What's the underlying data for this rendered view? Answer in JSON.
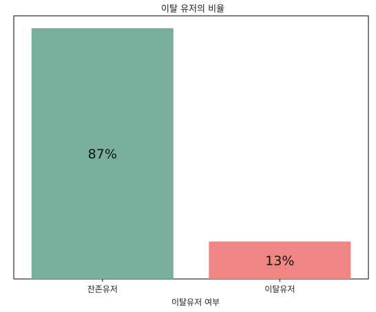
{
  "chart_data": {
    "type": "bar",
    "title": "이탈 유저의 비율",
    "xlabel": "이탈유저 여부",
    "ylabel": "",
    "categories": [
      "잔존유저",
      "이탈유저"
    ],
    "values": [
      87,
      13
    ],
    "data_labels": [
      "87%",
      "13%"
    ],
    "colors": [
      "#7aae9c",
      "#ef8683"
    ],
    "ylim": [
      0,
      87
    ],
    "grid": false,
    "y_ticks_visible": false
  }
}
